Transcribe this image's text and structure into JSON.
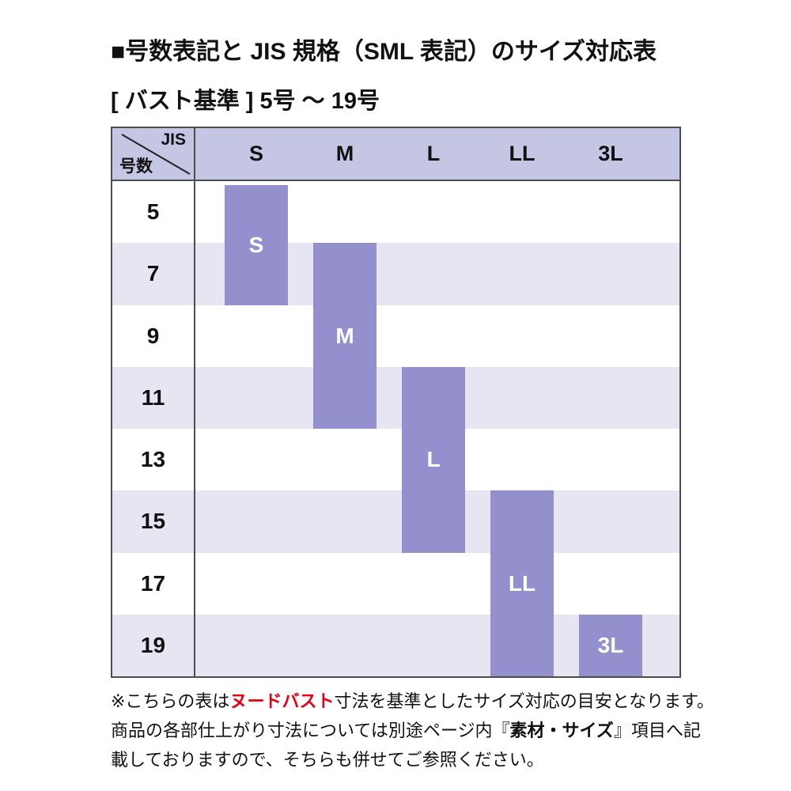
{
  "page": {
    "title": "■号数表記と JIS 規格（SML 表記）のサイズ対応表",
    "subtitle": "[ バスト基準 ] 5号 ～ 19号"
  },
  "table": {
    "corner": {
      "top_right": "JIS",
      "bottom_left": "号数"
    },
    "columns": [
      "S",
      "M",
      "L",
      "LL",
      "3L"
    ],
    "rows": [
      "5",
      "7",
      "9",
      "11",
      "13",
      "15",
      "17",
      "19"
    ],
    "bars": [
      {
        "label": "S",
        "column": "S",
        "row_start": "5",
        "row_end": "7"
      },
      {
        "label": "M",
        "column": "M",
        "row_start": "7",
        "row_end": "11"
      },
      {
        "label": "L",
        "column": "L",
        "row_start": "11",
        "row_end": "15"
      },
      {
        "label": "LL",
        "column": "LL",
        "row_start": "15",
        "row_end": "19"
      },
      {
        "label": "3L",
        "column": "3L",
        "row_start": "19",
        "row_end": "19"
      }
    ],
    "colors": {
      "header_bg": "#c4c6e3",
      "band_bg": "#e7e5f1",
      "bar": "#9390cd",
      "bar_text": "#ffffff",
      "border": "#4d4d4d"
    }
  },
  "chart_data": {
    "type": "table",
    "title": "■号数表記と JIS 規格（SML 表記）のサイズ対応表",
    "subtitle": "[ バスト基準 ] 5号 ～ 19号",
    "columns": [
      "S",
      "M",
      "L",
      "LL",
      "3L"
    ],
    "rows": [
      "5",
      "7",
      "9",
      "11",
      "13",
      "15",
      "17",
      "19"
    ],
    "mapping": [
      {
        "jis": "S",
        "gousu_range": [
          "5",
          "7"
        ]
      },
      {
        "jis": "M",
        "gousu_range": [
          "7",
          "11"
        ]
      },
      {
        "jis": "L",
        "gousu_range": [
          "11",
          "15"
        ]
      },
      {
        "jis": "LL",
        "gousu_range": [
          "15",
          "19"
        ]
      },
      {
        "jis": "3L",
        "gousu_range": [
          "19",
          "19"
        ]
      }
    ],
    "legend_position": "none",
    "grid": "alternating-row-bands"
  },
  "footnote": {
    "red_color": "#e60012",
    "lines": [
      [
        {
          "text": "※こちらの表は",
          "style": "normal"
        },
        {
          "text": "ヌードバスト",
          "style": "red-bold"
        },
        {
          "text": "寸法を基準としたサイズ対応の目安となります。",
          "style": "normal"
        }
      ],
      [
        {
          "text": "商品の各部仕上がり寸法については別途ページ内『",
          "style": "normal"
        },
        {
          "text": "素材・サイズ",
          "style": "bold"
        },
        {
          "text": "』項目へ記",
          "style": "normal"
        }
      ],
      [
        {
          "text": "載しておりますので、そちらも併せてご参照ください。",
          "style": "normal"
        }
      ]
    ]
  }
}
